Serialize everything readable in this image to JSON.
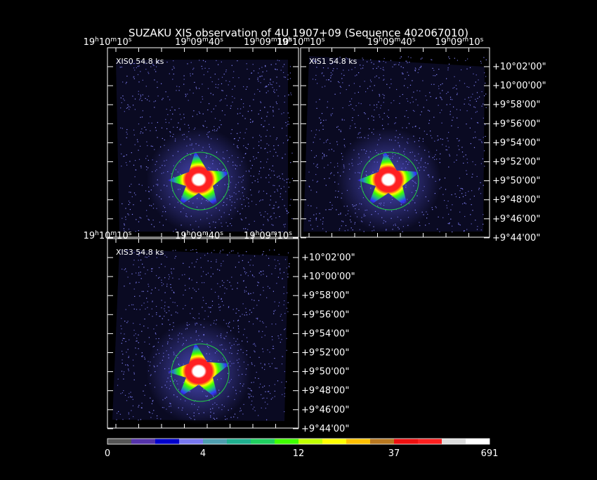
{
  "header": {
    "title": "SUZAKU XIS observation of 4U 1907+09  (Sequence 402067010)"
  },
  "panels": [
    {
      "label": "XIS0 54.8 ks",
      "ra_ticks": [
        "19h10m10s",
        "19h09m40s",
        "19h09m10s"
      ],
      "ra_ticks_bottom": [
        "19h10m10s",
        "19h09m40s",
        "19h09m10s"
      ]
    },
    {
      "label": "XIS1 54.8 ks",
      "ra_ticks": [
        "19h10m10s",
        "19h09m40s",
        "19h09m10s"
      ],
      "dec_ticks": [
        "+10°02'00\"",
        "+10°00'00\"",
        "+9°58'00\"",
        "+9°56'00\"",
        "+9°54'00\"",
        "+9°52'00\"",
        "+9°50'00\"",
        "+9°48'00\"",
        "+9°46'00\"",
        "+9°44'00\""
      ]
    },
    {
      "label": "XIS3 54.8 ks",
      "dec_ticks": [
        "+10°02'00\"",
        "+10°00'00\"",
        "+9°58'00\"",
        "+9°56'00\"",
        "+9°54'00\"",
        "+9°52'00\"",
        "+9°50'00\"",
        "+9°48'00\"",
        "+9°46'00\"",
        "+9°44'00\""
      ]
    }
  ],
  "colorbar": {
    "colors": [
      "#555555",
      "#5533aa",
      "#0000cc",
      "#7777ee",
      "#4f9fb0",
      "#20b090",
      "#20d060",
      "#40ff00",
      "#c0ff00",
      "#ffff00",
      "#ffc000",
      "#b87820",
      "#ee1010",
      "#ff2020",
      "#dddddd",
      "#ffffff"
    ],
    "labels": [
      "0",
      "4",
      "12",
      "37",
      "691"
    ]
  }
}
